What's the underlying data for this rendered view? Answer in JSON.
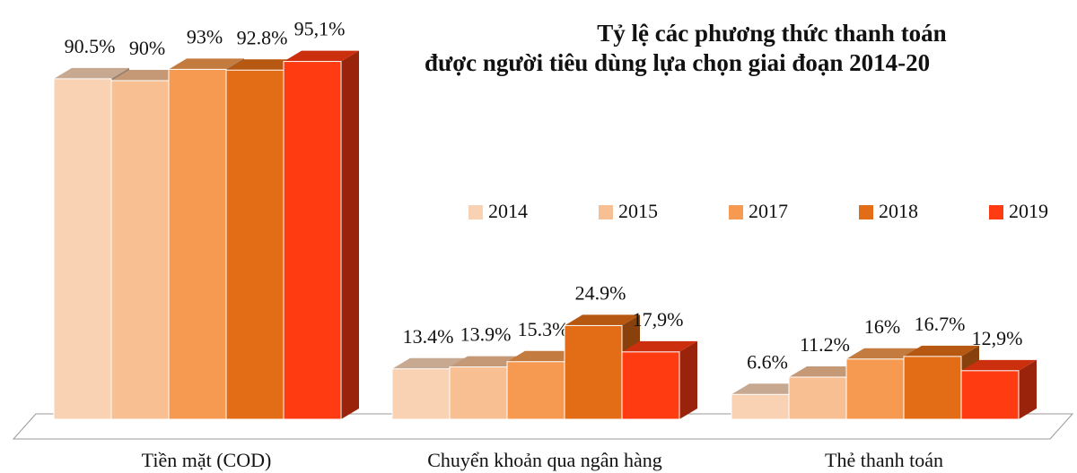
{
  "chart_data": {
    "type": "bar3d",
    "title": [
      "Tỷ lệ các phương thức thanh toán",
      "được người tiêu dùng lựa chọn giai đoạn 2014-20"
    ],
    "categories": [
      "Tiền mặt (COD)",
      "Chuyển khoản qua ngân hàng",
      "Thẻ thanh toán"
    ],
    "series": [
      {
        "name": "2014",
        "color": "#f9d2b4",
        "values": [
          90.5,
          13.4,
          6.6
        ],
        "value_labels": [
          "90.5%",
          "13.4%",
          "6.6%"
        ]
      },
      {
        "name": "2015",
        "color": "#f8bf93",
        "values": [
          90,
          13.9,
          11.2
        ],
        "value_labels": [
          "90%",
          "13.9%",
          "11.2%"
        ]
      },
      {
        "name": "2017",
        "color": "#f59a50",
        "values": [
          93,
          15.3,
          16
        ],
        "value_labels": [
          "93%",
          "15.3%",
          "16%"
        ]
      },
      {
        "name": "2018",
        "color": "#e36d16",
        "values": [
          92.8,
          24.9,
          16.7
        ],
        "value_labels": [
          "92.8%",
          "24.9%",
          "16.7%"
        ]
      },
      {
        "name": "2019",
        "color": "#ff3b12",
        "values": [
          95.1,
          17.9,
          12.9
        ],
        "value_labels": [
          "95,1%",
          "17,9%",
          "12,9%"
        ]
      }
    ]
  }
}
